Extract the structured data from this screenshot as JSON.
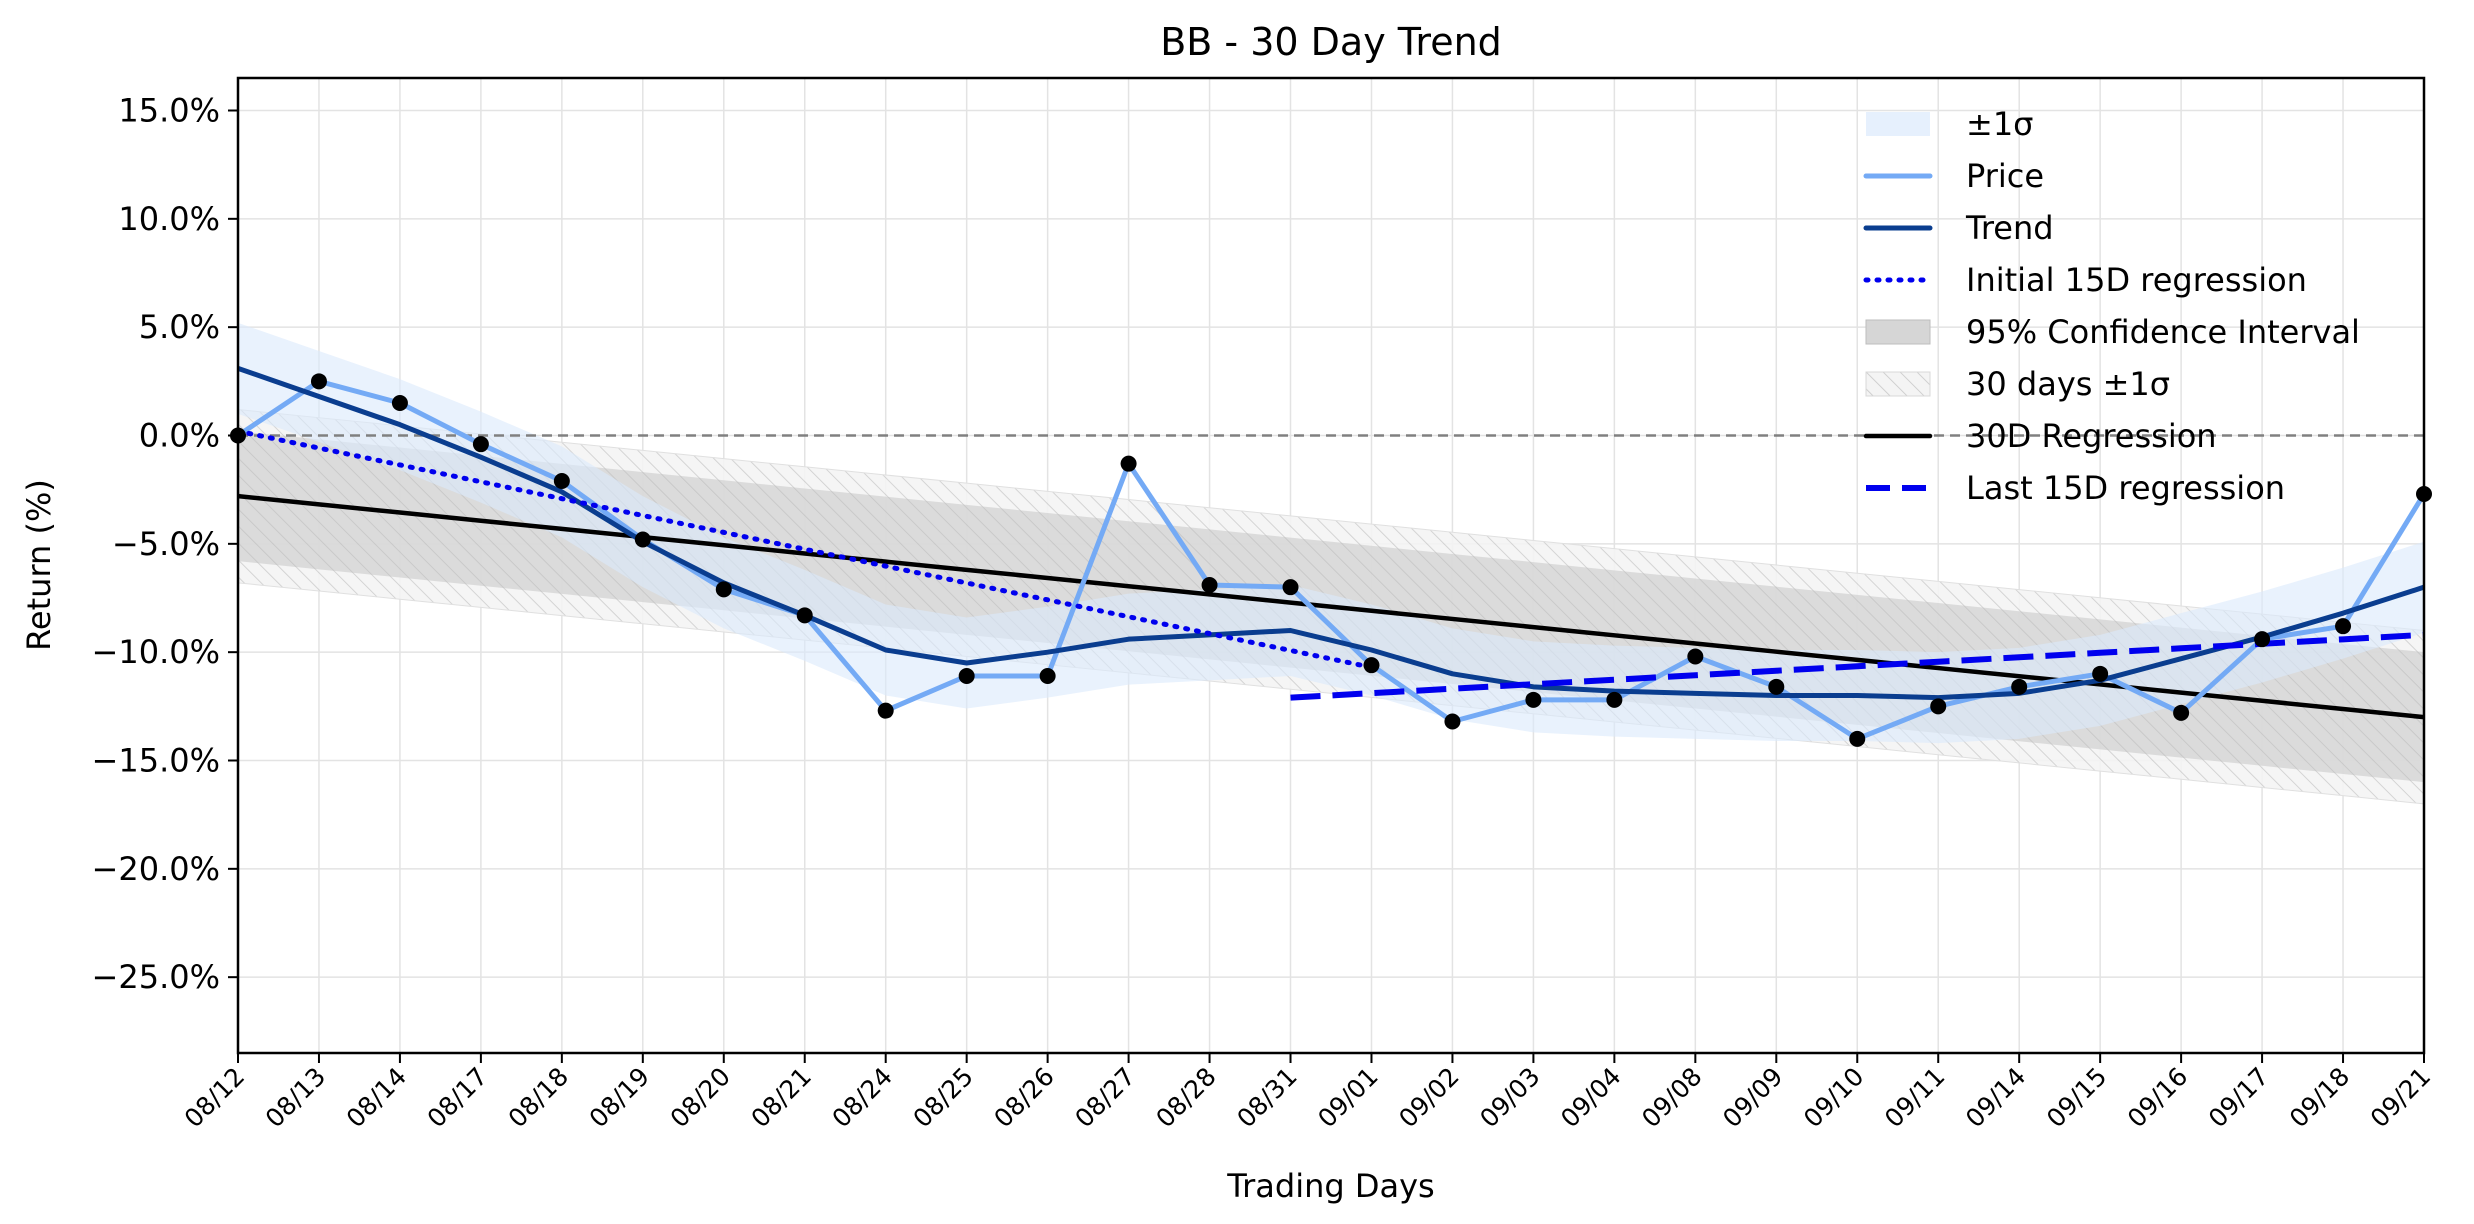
{
  "chart_data": {
    "type": "line",
    "title": "BB - 30 Day Trend",
    "xlabel": "Trading Days",
    "ylabel": "Return (%)",
    "ylim": [
      -28.5,
      16.5
    ],
    "yticks": [
      15,
      10,
      5,
      0,
      -5,
      -10,
      -15,
      -20,
      -25
    ],
    "ytick_labels": [
      "15.0%",
      "10.0%",
      "5.0%",
      "0.0%",
      "−5.0%",
      "−10.0%",
      "−15.0%",
      "−20.0%",
      "−25.0%"
    ],
    "categories": [
      "08/12",
      "08/13",
      "08/14",
      "08/17",
      "08/18",
      "08/19",
      "08/20",
      "08/21",
      "08/24",
      "08/25",
      "08/26",
      "08/27",
      "08/28",
      "08/31",
      "09/01",
      "09/02",
      "09/03",
      "09/04",
      "09/08",
      "09/09",
      "09/10",
      "09/11",
      "09/14",
      "09/15",
      "09/16",
      "09/17",
      "09/18",
      "09/21"
    ],
    "grid": true,
    "zero_line": 0,
    "legend_position": "upper right",
    "series": [
      {
        "name": "Price",
        "color": "#74aaf5",
        "values": [
          0.0,
          2.5,
          1.5,
          -0.4,
          -2.1,
          -4.8,
          -7.1,
          -8.3,
          -12.7,
          -11.1,
          -11.1,
          -1.3,
          -6.9,
          -7.0,
          -10.6,
          -13.2,
          -12.2,
          -12.2,
          -10.2,
          -11.6,
          -14.0,
          -12.5,
          -11.6,
          -11.0,
          -12.8,
          -9.4,
          -8.8,
          -2.7
        ]
      },
      {
        "name": "Trend",
        "color": "#0a3d8f",
        "values": [
          3.1,
          1.8,
          0.5,
          -1.0,
          -2.6,
          -4.9,
          -6.8,
          -8.3,
          -9.9,
          -10.5,
          -10.0,
          -9.4,
          -9.2,
          -9.0,
          -9.9,
          -11.0,
          -11.6,
          -11.8,
          -11.9,
          -12.0,
          -12.0,
          -12.1,
          -11.9,
          -11.3,
          -10.3,
          -9.3,
          -8.2,
          -7.0
        ]
      },
      {
        "name": "Initial 15D regression",
        "color": "#0000ee",
        "style": "dotted",
        "x_range": [
          0,
          14
        ],
        "y_start": 0.2,
        "y_end": -10.7
      },
      {
        "name": "30D Regression",
        "color": "#000000",
        "x_range": [
          0,
          27
        ],
        "y_start": -2.8,
        "y_end": -13.0
      },
      {
        "name": "Last 15D regression",
        "color": "#0000ee",
        "style": "dashed",
        "x_range": [
          13,
          27
        ],
        "y_start": -12.1,
        "y_end": -9.2
      }
    ],
    "bands": [
      {
        "name": "±1σ",
        "color": "#dbeafc",
        "around": "Trend",
        "half_width": 2.1
      },
      {
        "name": "95% Confidence Interval",
        "color": "#bdbdbd",
        "around": "30D Regression",
        "half_width": 3.0
      },
      {
        "name": "30 days ±1σ",
        "color": "#e6e6e6",
        "hatch": true,
        "around": "30D Regression",
        "half_width": 4.0
      }
    ],
    "legend": [
      "±1σ",
      "Price",
      "Trend",
      "Initial 15D regression",
      "95% Confidence Interval",
      "30 days ±1σ",
      "30D Regression",
      "Last 15D regression"
    ]
  }
}
